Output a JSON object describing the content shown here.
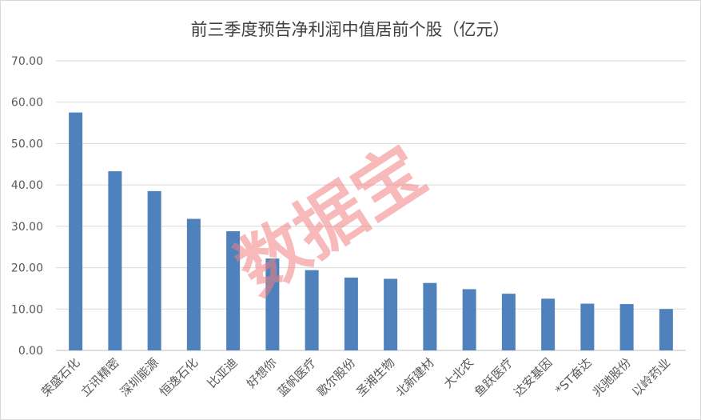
{
  "chart_data": {
    "type": "bar",
    "title": "前三季度预告净利润中值居前个股（亿元）",
    "xlabel": "",
    "ylabel": "",
    "ylim": [
      0,
      70
    ],
    "yticks": [
      "0.00",
      "10.00",
      "20.00",
      "30.00",
      "40.00",
      "50.00",
      "60.00",
      "70.00"
    ],
    "grid": true,
    "legend": "none",
    "categories": [
      "荣盛石化",
      "立讯精密",
      "深圳能源",
      "恒逸石化",
      "比亚迪",
      "好想你",
      "蓝帆医疗",
      "歌尔股份",
      "圣湘生物",
      "北新建材",
      "大北农",
      "鱼跃医疗",
      "达安基因",
      "*ST奋达",
      "兆驰股份",
      "以岭药业"
    ],
    "values": [
      57.5,
      43.3,
      38.5,
      31.8,
      28.8,
      22.2,
      19.4,
      17.6,
      17.3,
      16.3,
      14.8,
      13.7,
      12.5,
      11.3,
      11.2,
      10.0
    ],
    "colors": {
      "bar": "#4f81bd",
      "grid": "#d9d9d9",
      "text": "#595959",
      "title": "#404040",
      "watermark": "#f08080"
    }
  },
  "watermark": {
    "text": "数据宝"
  }
}
